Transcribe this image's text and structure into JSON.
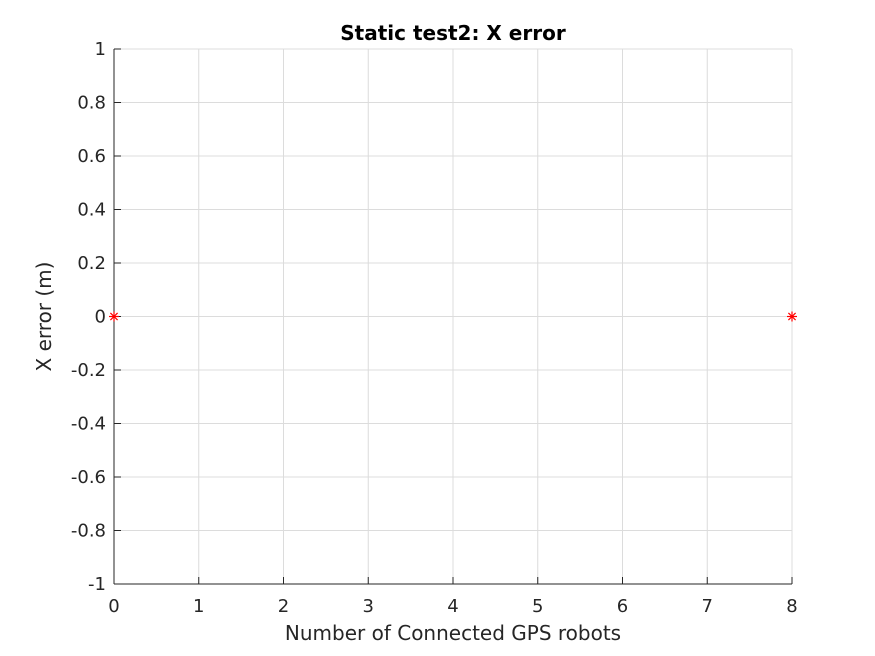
{
  "chart_data": {
    "type": "scatter",
    "title": "Static test2: X error",
    "xlabel": "Number of Connected GPS robots",
    "ylabel": "X error (m)",
    "xlim": [
      0,
      8
    ],
    "ylim": [
      -1,
      1
    ],
    "xticks": [
      0,
      1,
      2,
      3,
      4,
      5,
      6,
      7,
      8
    ],
    "xtick_labels": [
      "0",
      "1",
      "2",
      "3",
      "4",
      "5",
      "6",
      "7",
      "8"
    ],
    "yticks": [
      -1,
      -0.8,
      -0.6,
      -0.4,
      -0.2,
      0,
      0.2,
      0.4,
      0.6,
      0.8,
      1
    ],
    "ytick_labels": [
      "-1",
      "-0.8",
      "-0.6",
      "-0.4",
      "-0.2",
      "0",
      "0.2",
      "0.4",
      "0.6",
      "0.8",
      "1"
    ],
    "grid": true,
    "marker": "asterisk",
    "marker_color": "#ff0000",
    "points": [
      {
        "x": 0,
        "y": 0
      },
      {
        "x": 8,
        "y": 0
      }
    ]
  }
}
